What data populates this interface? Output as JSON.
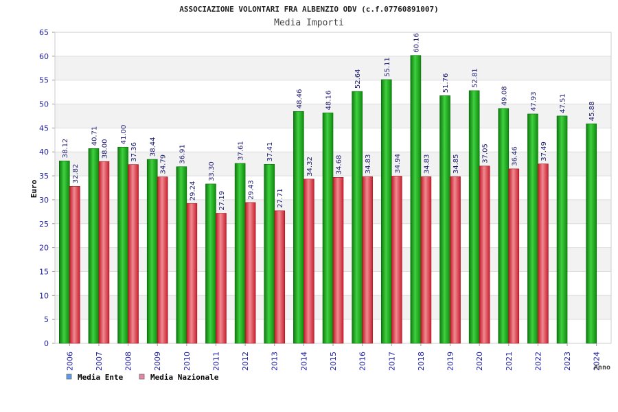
{
  "chart_data": {
    "type": "bar",
    "title": "ASSOCIAZIONE VOLONTARI FRA ALBENZIO ODV (c.f.07760891007)",
    "subtitle": "Media Importi",
    "ylabel": "Euro",
    "xlabel": "Anno",
    "ylim": [
      0,
      65
    ],
    "ytick_step": 5,
    "grid": "horizontal bands",
    "legend_position": "bottom-left",
    "categories": [
      "2006",
      "2007",
      "2008",
      "2009",
      "2010",
      "2011",
      "2012",
      "2013",
      "2014",
      "2015",
      "2016",
      "2017",
      "2018",
      "2019",
      "2020",
      "2021",
      "2022",
      "2023",
      "2024"
    ],
    "series": [
      {
        "name": "Media Ente",
        "color": "#1faa1f",
        "legend_color": "#5b9be8",
        "values": [
          38.12,
          40.71,
          41.0,
          38.44,
          36.91,
          33.3,
          37.61,
          37.41,
          48.46,
          48.16,
          52.64,
          55.11,
          60.16,
          51.76,
          52.81,
          49.08,
          47.93,
          47.51,
          45.88
        ],
        "labels": [
          "38.12",
          "40.71",
          "41.00",
          "38.44",
          "36.91",
          "33.30",
          "37.61",
          "37.41",
          "48.46",
          "48.16",
          "52.64",
          "55.11",
          "60.16",
          "51.76",
          "52.81",
          "49.08",
          "47.93",
          "47.51",
          "45.88"
        ]
      },
      {
        "name": "Media Nazionale",
        "color": "#e03a48",
        "legend_color": "#e884a8",
        "values": [
          32.82,
          38.0,
          37.36,
          34.79,
          29.24,
          27.19,
          29.43,
          27.71,
          34.32,
          34.68,
          34.83,
          34.94,
          34.83,
          34.85,
          37.05,
          36.46,
          37.49,
          null,
          null
        ],
        "labels": [
          "32.82",
          "38.00",
          "37.36",
          "34.79",
          "29.24",
          "27.19",
          "29.43",
          "27.71",
          "34.32",
          "34.68",
          "34.83",
          "34.94",
          "34.83",
          "34.85",
          "37.05",
          "36.46",
          "37.49",
          null,
          null
        ]
      }
    ]
  }
}
